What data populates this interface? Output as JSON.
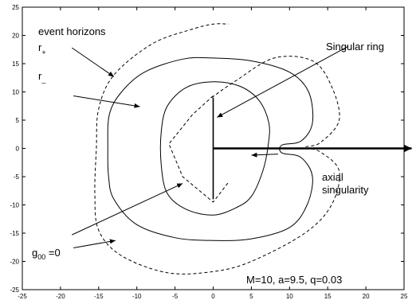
{
  "chart_data": {
    "type": "line",
    "xlim": [
      -25,
      25
    ],
    "ylim": [
      -25,
      25
    ],
    "xticks": [
      -25,
      -20,
      -15,
      -10,
      -5,
      0,
      5,
      10,
      15,
      20,
      25
    ],
    "yticks": [
      -25,
      -20,
      -15,
      -10,
      -5,
      0,
      5,
      10,
      15,
      20,
      25
    ],
    "grid": false,
    "curves": {
      "ergosurface_dashed": [
        [
          -0.2,
          9
        ],
        [
          3,
          12
        ],
        [
          8,
          16
        ],
        [
          13,
          15.5
        ],
        [
          15.5,
          11
        ],
        [
          16.5,
          5
        ],
        [
          14,
          1
        ],
        [
          12,
          0.2
        ],
        [
          14,
          -0.6
        ],
        [
          16.5,
          -4
        ],
        [
          15.5,
          -10
        ],
        [
          12,
          -15
        ],
        [
          5,
          -20
        ],
        [
          0,
          -21.8
        ],
        [
          -6,
          -22
        ],
        [
          -12,
          -19
        ],
        [
          -15,
          -14.5
        ],
        [
          -15.5,
          -8
        ],
        [
          -15.3,
          0
        ],
        [
          -15,
          7
        ],
        [
          -13,
          13
        ],
        [
          -8,
          18.5
        ],
        [
          -3,
          21
        ],
        [
          0,
          22
        ],
        [
          2,
          22
        ]
      ],
      "r_plus_outer": [
        [
          0,
          16
        ],
        [
          5,
          15.5
        ],
        [
          10,
          13.5
        ],
        [
          12.5,
          10
        ],
        [
          13,
          4.5
        ],
        [
          11.5,
          1.3
        ],
        [
          9,
          0.6
        ],
        [
          9,
          -0.8
        ],
        [
          11.5,
          -1.6
        ],
        [
          13,
          -5
        ],
        [
          12.3,
          -10
        ],
        [
          10,
          -14
        ],
        [
          5,
          -16
        ],
        [
          0,
          -16.3
        ],
        [
          -5,
          -15.8
        ],
        [
          -10,
          -13.5
        ],
        [
          -13,
          -9
        ],
        [
          -13.7,
          -5
        ],
        [
          -13.8,
          0
        ],
        [
          -13.6,
          6
        ],
        [
          -12,
          10
        ],
        [
          -9,
          13.5
        ],
        [
          -4,
          15.8
        ],
        [
          0,
          16
        ]
      ],
      "r_minus_inner": [
        [
          0,
          11.8
        ],
        [
          3.5,
          11
        ],
        [
          6,
          8.5
        ],
        [
          7.3,
          4.5
        ],
        [
          7.2,
          0.5
        ],
        [
          6.5,
          -4
        ],
        [
          5,
          -8.5
        ],
        [
          3,
          -10.5
        ],
        [
          0,
          -11.8
        ],
        [
          -3.5,
          -10.8
        ],
        [
          -6,
          -8
        ],
        [
          -6.8,
          -3
        ],
        [
          -6.8,
          3
        ],
        [
          -6,
          7.5
        ],
        [
          -3.5,
          10.8
        ],
        [
          0,
          11.8
        ]
      ],
      "inner_dashed_diamond": [
        [
          0,
          9.3
        ],
        [
          -2.7,
          6
        ],
        [
          -5.8,
          0.8
        ],
        [
          -4,
          -5
        ],
        [
          0,
          -9.5
        ],
        [
          2,
          -6
        ]
      ],
      "singular_segment": [
        [
          0,
          -9
        ],
        [
          0,
          9
        ]
      ],
      "axis_arrow": [
        [
          0,
          0
        ],
        [
          26,
          0
        ]
      ]
    },
    "annotations": {
      "event_horizons": "event horizons",
      "r_plus_letter": "r",
      "r_plus_sub": "+",
      "r_minus_letter": "r",
      "r_minus_sub": "_",
      "singular_ring": "Singular ring",
      "axial_line1": "axial",
      "axial_line2": "singularity",
      "g_letter": "g",
      "g_sub": "00",
      "g_rest": " =0",
      "params": "M=10,  a=9.5,  q=0.03"
    },
    "arrows": {
      "event_horizons": [
        [
          -18.5,
          17.8
        ],
        [
          -13,
          12.7
        ]
      ],
      "r_minus": [
        [
          -18.3,
          9.3
        ],
        [
          -9.6,
          7.4
        ]
      ],
      "singular_ring": [
        [
          17.6,
          18
        ],
        [
          0.5,
          5.5
        ]
      ],
      "axial_singularity": [
        [
          8.5,
          -1
        ],
        [
          5,
          -1.2
        ]
      ],
      "g00_lower": [
        [
          -18.5,
          -15.3
        ],
        [
          -4,
          -6.2
        ]
      ],
      "g00_dashed": [
        [
          -18.3,
          -17.6
        ],
        [
          -12.8,
          -16.3
        ]
      ]
    }
  }
}
